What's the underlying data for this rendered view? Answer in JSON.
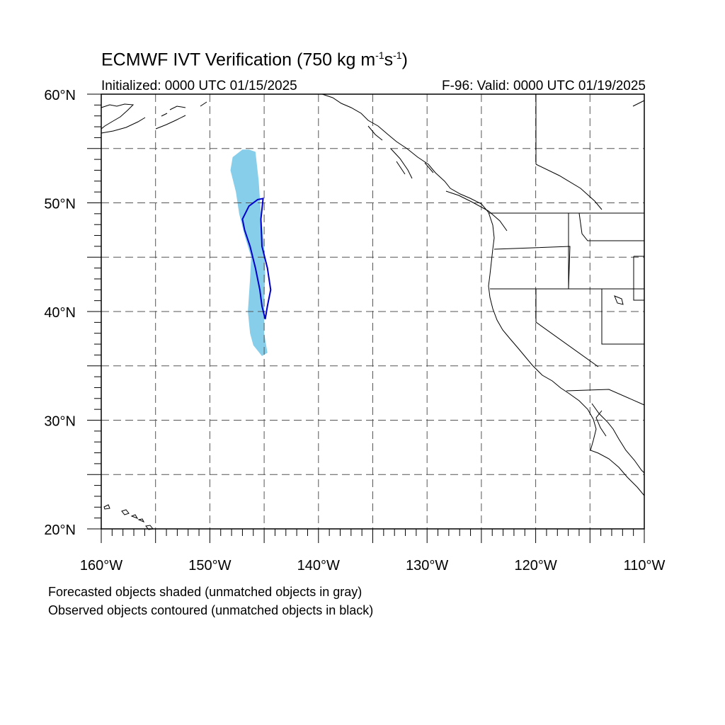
{
  "title": {
    "text": "ECMWF IVT Verification (750 kg m",
    "sup1": "-1",
    "mid": "s",
    "sup2": "-1",
    "end": ")"
  },
  "subtitle_left": "Initialized: 0000 UTC 01/15/2025",
  "subtitle_right": "F-96: Valid: 0000 UTC 01/19/2025",
  "notes": [
    "Forecasted objects shaded (unmatched objects in gray)",
    "Observed objects contoured (unmatched objects in black)"
  ],
  "map": {
    "lon_range": [
      -160,
      -110
    ],
    "lat_range": [
      20,
      60
    ],
    "lon_ticks": [
      {
        "value": -160,
        "label": "160°W"
      },
      {
        "value": -150,
        "label": "150°W"
      },
      {
        "value": -140,
        "label": "140°W"
      },
      {
        "value": -130,
        "label": "130°W"
      },
      {
        "value": -120,
        "label": "120°W"
      },
      {
        "value": -110,
        "label": "110°W"
      }
    ],
    "lat_ticks": [
      {
        "value": 20,
        "label": "20°N"
      },
      {
        "value": 30,
        "label": "30°N"
      },
      {
        "value": 40,
        "label": "40°N"
      },
      {
        "value": 50,
        "label": "50°N"
      },
      {
        "value": 60,
        "label": "60°N"
      }
    ],
    "grid_spacing_deg": 5,
    "forecast_object_color": "#87ceeb",
    "observed_object_color": "#0000cc",
    "forecast_object": [
      [
        -146.4,
        54.9
      ],
      [
        -145.8,
        54.7
      ],
      [
        -145.5,
        52.0
      ],
      [
        -145.3,
        49.0
      ],
      [
        -145.0,
        46.0
      ],
      [
        -144.9,
        43.5
      ],
      [
        -145.0,
        41.0
      ],
      [
        -145.0,
        38.0
      ],
      [
        -144.7,
        36.2
      ],
      [
        -145.2,
        35.9
      ],
      [
        -146.0,
        36.9
      ],
      [
        -146.3,
        38.0
      ],
      [
        -146.5,
        40.0
      ],
      [
        -146.3,
        43.0
      ],
      [
        -146.2,
        45.0
      ],
      [
        -146.8,
        47.0
      ],
      [
        -147.3,
        49.0
      ],
      [
        -147.6,
        51.0
      ],
      [
        -148.1,
        53.0
      ],
      [
        -147.9,
        54.2
      ],
      [
        -147.0,
        54.9
      ]
    ],
    "observed_object": [
      [
        -145.1,
        50.4
      ],
      [
        -145.3,
        48.5
      ],
      [
        -145.2,
        46.0
      ],
      [
        -144.7,
        44.0
      ],
      [
        -144.4,
        42.0
      ],
      [
        -144.7,
        40.5
      ],
      [
        -144.9,
        39.3
      ],
      [
        -145.2,
        40.5
      ],
      [
        -145.4,
        42.0
      ],
      [
        -145.8,
        44.0
      ],
      [
        -146.3,
        46.0
      ],
      [
        -146.8,
        47.5
      ],
      [
        -147.0,
        48.5
      ],
      [
        -146.4,
        49.7
      ],
      [
        -145.6,
        50.3
      ]
    ]
  }
}
